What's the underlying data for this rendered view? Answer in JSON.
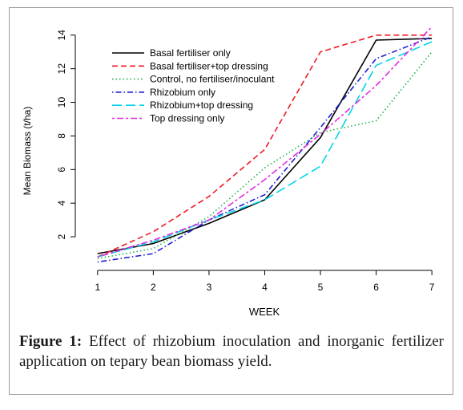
{
  "caption": {
    "label": "Figure 1:",
    "text": " Effect of rhizobium inoculation and inorganic fertilizer application on tepary bean biomass yield."
  },
  "chart_data": {
    "type": "line",
    "title": "",
    "xlabel": "WEEK",
    "ylabel": "Mean Biomass (t/ha)",
    "x": [
      1,
      2,
      3,
      4,
      5,
      6,
      7
    ],
    "xlim": [
      0.6,
      7.3
    ],
    "ylim": [
      0,
      14.8
    ],
    "x_ticks": [
      1,
      2,
      3,
      4,
      5,
      6,
      7
    ],
    "y_ticks": [
      2,
      4,
      6,
      8,
      10,
      12,
      14
    ],
    "grid": false,
    "legend_position": "top-left",
    "series": [
      {
        "name": "Basal fertiliser only",
        "color": "#000000",
        "dash": "solid",
        "values": [
          1.0,
          1.6,
          2.8,
          4.2,
          7.9,
          13.7,
          13.8
        ]
      },
      {
        "name": "Basal fertiliser+top dressing",
        "color": "#ee1c24",
        "dash": "dashed",
        "values": [
          0.8,
          2.3,
          4.4,
          7.2,
          13.0,
          14.0,
          14.0
        ]
      },
      {
        "name": "Control, no fertiliser/inoculant",
        "color": "#22b14c",
        "dash": "dotted",
        "values": [
          0.7,
          1.3,
          3.2,
          6.1,
          8.2,
          8.9,
          13.0
        ]
      },
      {
        "name": "Rhizobium only",
        "color": "#1f1fd6",
        "dash": "dashdot",
        "values": [
          0.5,
          1.0,
          3.0,
          4.5,
          8.5,
          12.6,
          13.9
        ]
      },
      {
        "name": "Rhizobium+top dressing",
        "color": "#00d5e8",
        "dash": "longdash",
        "values": [
          0.8,
          1.7,
          3.0,
          4.2,
          6.2,
          12.2,
          13.6
        ]
      },
      {
        "name": "Top dressing only",
        "color": "#e22ce2",
        "dash": "twodash",
        "values": [
          0.8,
          1.8,
          3.0,
          5.4,
          8.1,
          11.0,
          14.5
        ]
      }
    ]
  }
}
